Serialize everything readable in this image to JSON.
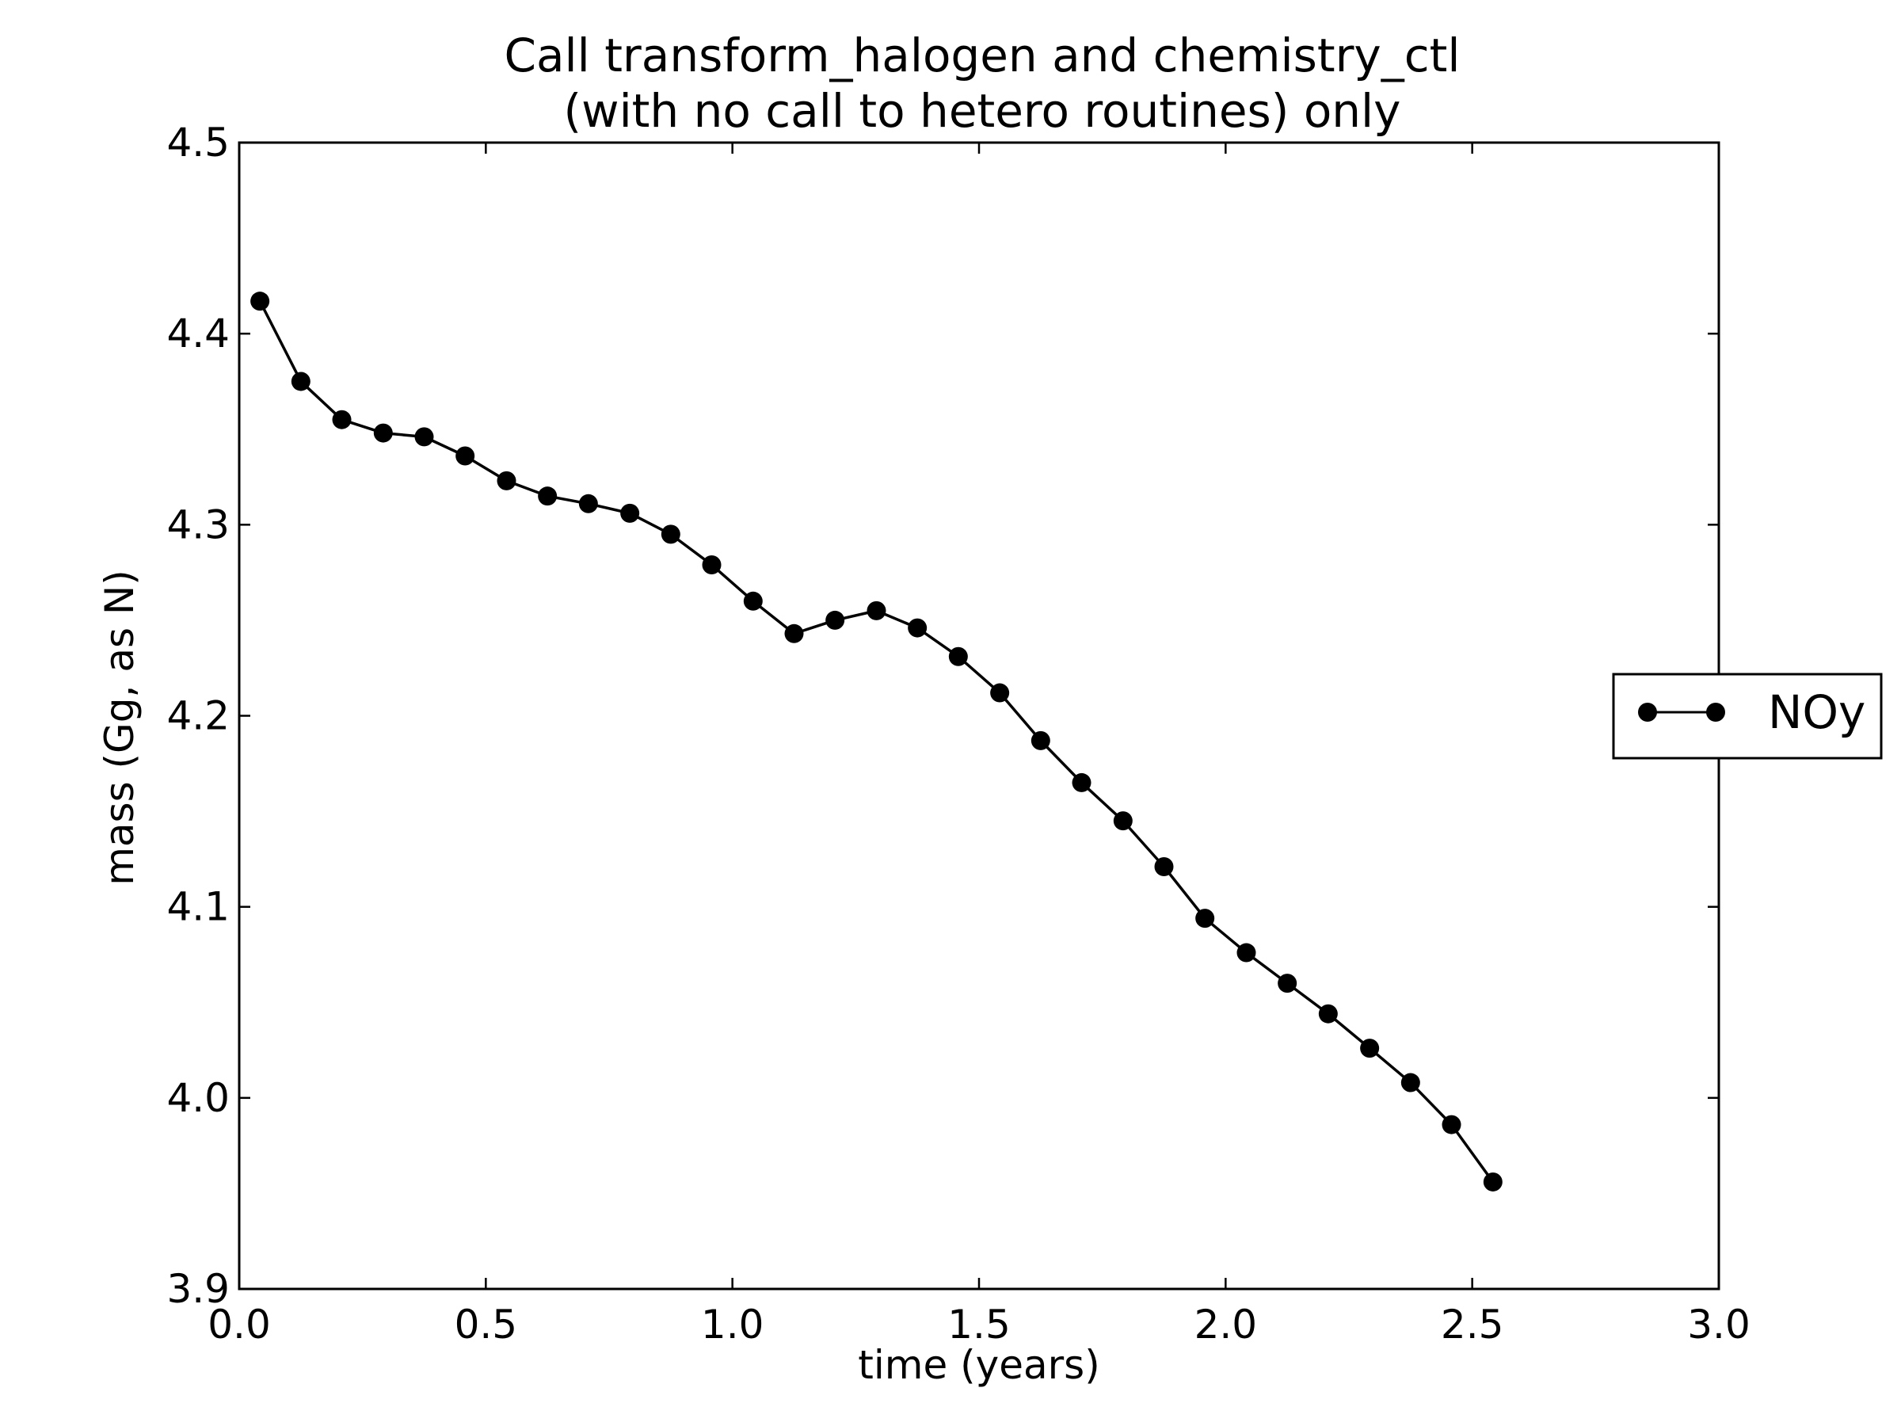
{
  "chart_data": {
    "type": "line",
    "title": [
      "Call transform_halogen and chemistry_ctl",
      "(with no call to hetero routines) only"
    ],
    "xlabel": "time (years)",
    "ylabel": "mass (Gg, as N)",
    "xlim": [
      0.0,
      3.0
    ],
    "ylim": [
      3.9,
      4.5
    ],
    "xticks": [
      "0.0",
      "0.5",
      "1.0",
      "1.5",
      "2.0",
      "2.5",
      "3.0"
    ],
    "yticks": [
      "3.9",
      "4.0",
      "4.1",
      "4.2",
      "4.3",
      "4.4",
      "4.5"
    ],
    "grid": false,
    "legend_position": "center-right, outside plot",
    "color": "#000000",
    "series": [
      {
        "name": "NOy",
        "x": [
          0.042,
          0.125,
          0.208,
          0.292,
          0.375,
          0.458,
          0.542,
          0.625,
          0.708,
          0.792,
          0.875,
          0.958,
          1.042,
          1.125,
          1.208,
          1.292,
          1.375,
          1.458,
          1.542,
          1.625,
          1.708,
          1.792,
          1.875,
          1.958,
          2.042,
          2.125,
          2.208,
          2.292,
          2.375,
          2.458,
          2.542
        ],
        "values": [
          4.417,
          4.375,
          4.355,
          4.348,
          4.346,
          4.336,
          4.323,
          4.315,
          4.311,
          4.306,
          4.295,
          4.279,
          4.26,
          4.243,
          4.25,
          4.255,
          4.246,
          4.231,
          4.212,
          4.187,
          4.165,
          4.145,
          4.121,
          4.094,
          4.076,
          4.06,
          4.044,
          4.026,
          4.008,
          3.986,
          3.956
        ]
      }
    ]
  }
}
